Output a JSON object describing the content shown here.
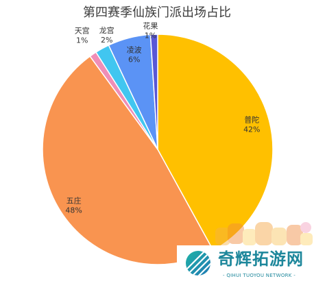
{
  "chart_data": {
    "type": "pie",
    "title": "第四赛季仙族门派出场占比",
    "categories": [
      "普陀",
      "五庄",
      "天宫",
      "龙宫",
      "凌波",
      "花果"
    ],
    "values": [
      42,
      48,
      1,
      2,
      6,
      1
    ],
    "unit": "%",
    "colors": [
      "#FFC000",
      "#F99450",
      "#EF8EB7",
      "#41C6F0",
      "#5B93F5",
      "#5957D6"
    ],
    "start": "top",
    "direction": "clockwise",
    "legend": "none",
    "data_labels": "category and percentage"
  },
  "watermark": {
    "brand": "奇辉拓游网",
    "tagline": "- QIHUI TUOYOU NETWORK -",
    "brand_color": "#1D879B",
    "logo_colors": [
      "#20B3A6",
      "#1F78B4"
    ]
  }
}
